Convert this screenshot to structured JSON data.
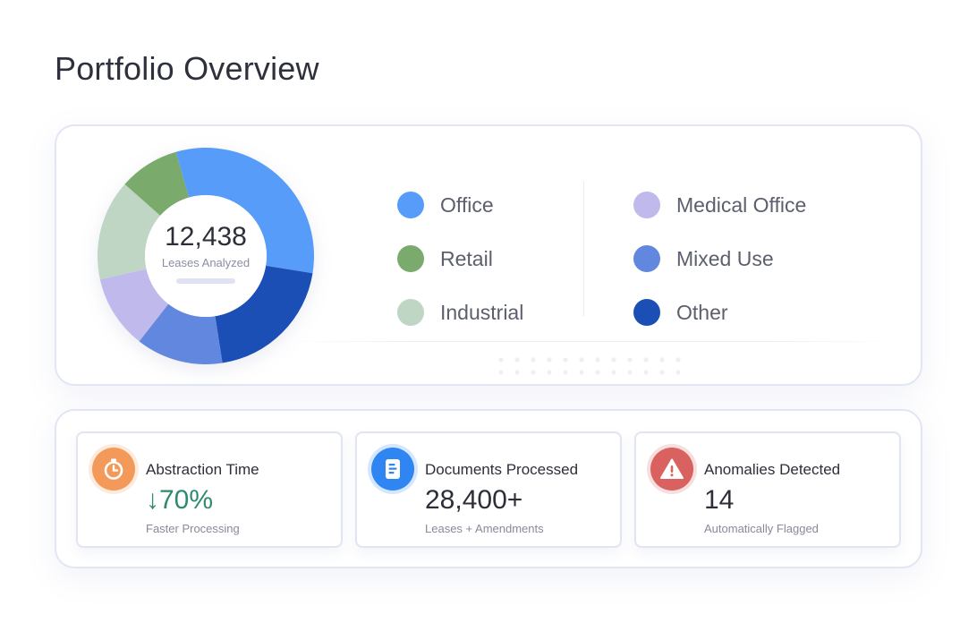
{
  "page": {
    "title": "Portfolio Overview"
  },
  "donut": {
    "total_value": "12,438",
    "total_label": "Leases Analyzed"
  },
  "legend": {
    "items": [
      {
        "label": "Office",
        "color": "#579cf9"
      },
      {
        "label": "Retail",
        "color": "#7aaa6c"
      },
      {
        "label": "Industrial",
        "color": "#bfd6c4"
      },
      {
        "label": "Medical Office",
        "color": "#c0b9ec"
      },
      {
        "label": "Mixed Use",
        "color": "#6188de"
      },
      {
        "label": "Other",
        "color": "#1c4fb5"
      }
    ]
  },
  "chart_data": {
    "type": "pie",
    "variant": "donut",
    "title": "Portfolio Overview",
    "categories": [
      "Office",
      "Retail",
      "Industrial",
      "Medical Office",
      "Mixed Use",
      "Other"
    ],
    "values": [
      32,
      9,
      15,
      11,
      13,
      20
    ],
    "unit": "percent (estimated from slice angles)",
    "colors": [
      "#579cf9",
      "#7aaa6c",
      "#bfd6c4",
      "#c0b9ec",
      "#6188de",
      "#1c4fb5"
    ],
    "center_value": "12,438",
    "center_label": "Leases Analyzed",
    "legend": "right"
  },
  "stats": [
    {
      "title": "Abstraction Time",
      "value": "↓70%",
      "subtitle": "Faster Processing",
      "icon": "stopwatch-icon",
      "icon_color": "#f39a5b"
    },
    {
      "title": "Documents Processed",
      "value": "28,400+",
      "subtitle": "Leases + Amendments",
      "icon": "document-icon",
      "icon_color": "#2f86f3"
    },
    {
      "title": "Anomalies Detected",
      "value": "14",
      "subtitle": "Automatically Flagged",
      "icon": "warning-icon",
      "icon_color": "#d9615f"
    }
  ]
}
